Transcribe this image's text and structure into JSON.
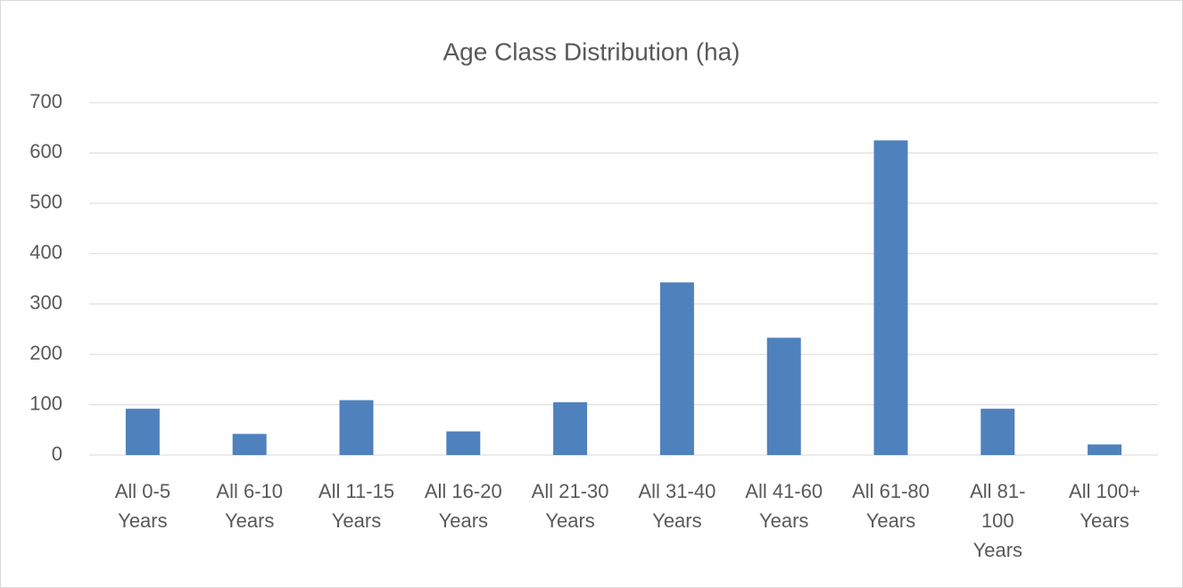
{
  "chart_data": {
    "type": "bar",
    "title": "Age Class Distribution (ha)",
    "categories": [
      [
        "All 0-5",
        "Years"
      ],
      [
        "All 6-10",
        "Years"
      ],
      [
        "All 11-15",
        "Years"
      ],
      [
        "All 16-20",
        "Years"
      ],
      [
        "All 21-30",
        "Years"
      ],
      [
        "All 31-40",
        "Years"
      ],
      [
        "All 41-60",
        "Years"
      ],
      [
        "All 61-80",
        "Years"
      ],
      [
        "All 81-",
        "100",
        "Years"
      ],
      [
        "All 100+",
        "Years"
      ]
    ],
    "values": [
      92,
      42,
      109,
      47,
      105,
      343,
      233,
      625,
      92,
      21
    ],
    "color": "#4f81bd",
    "ylim": [
      0,
      700
    ],
    "yticks": [
      0,
      100,
      200,
      300,
      400,
      500,
      600,
      700
    ],
    "grid": true
  }
}
